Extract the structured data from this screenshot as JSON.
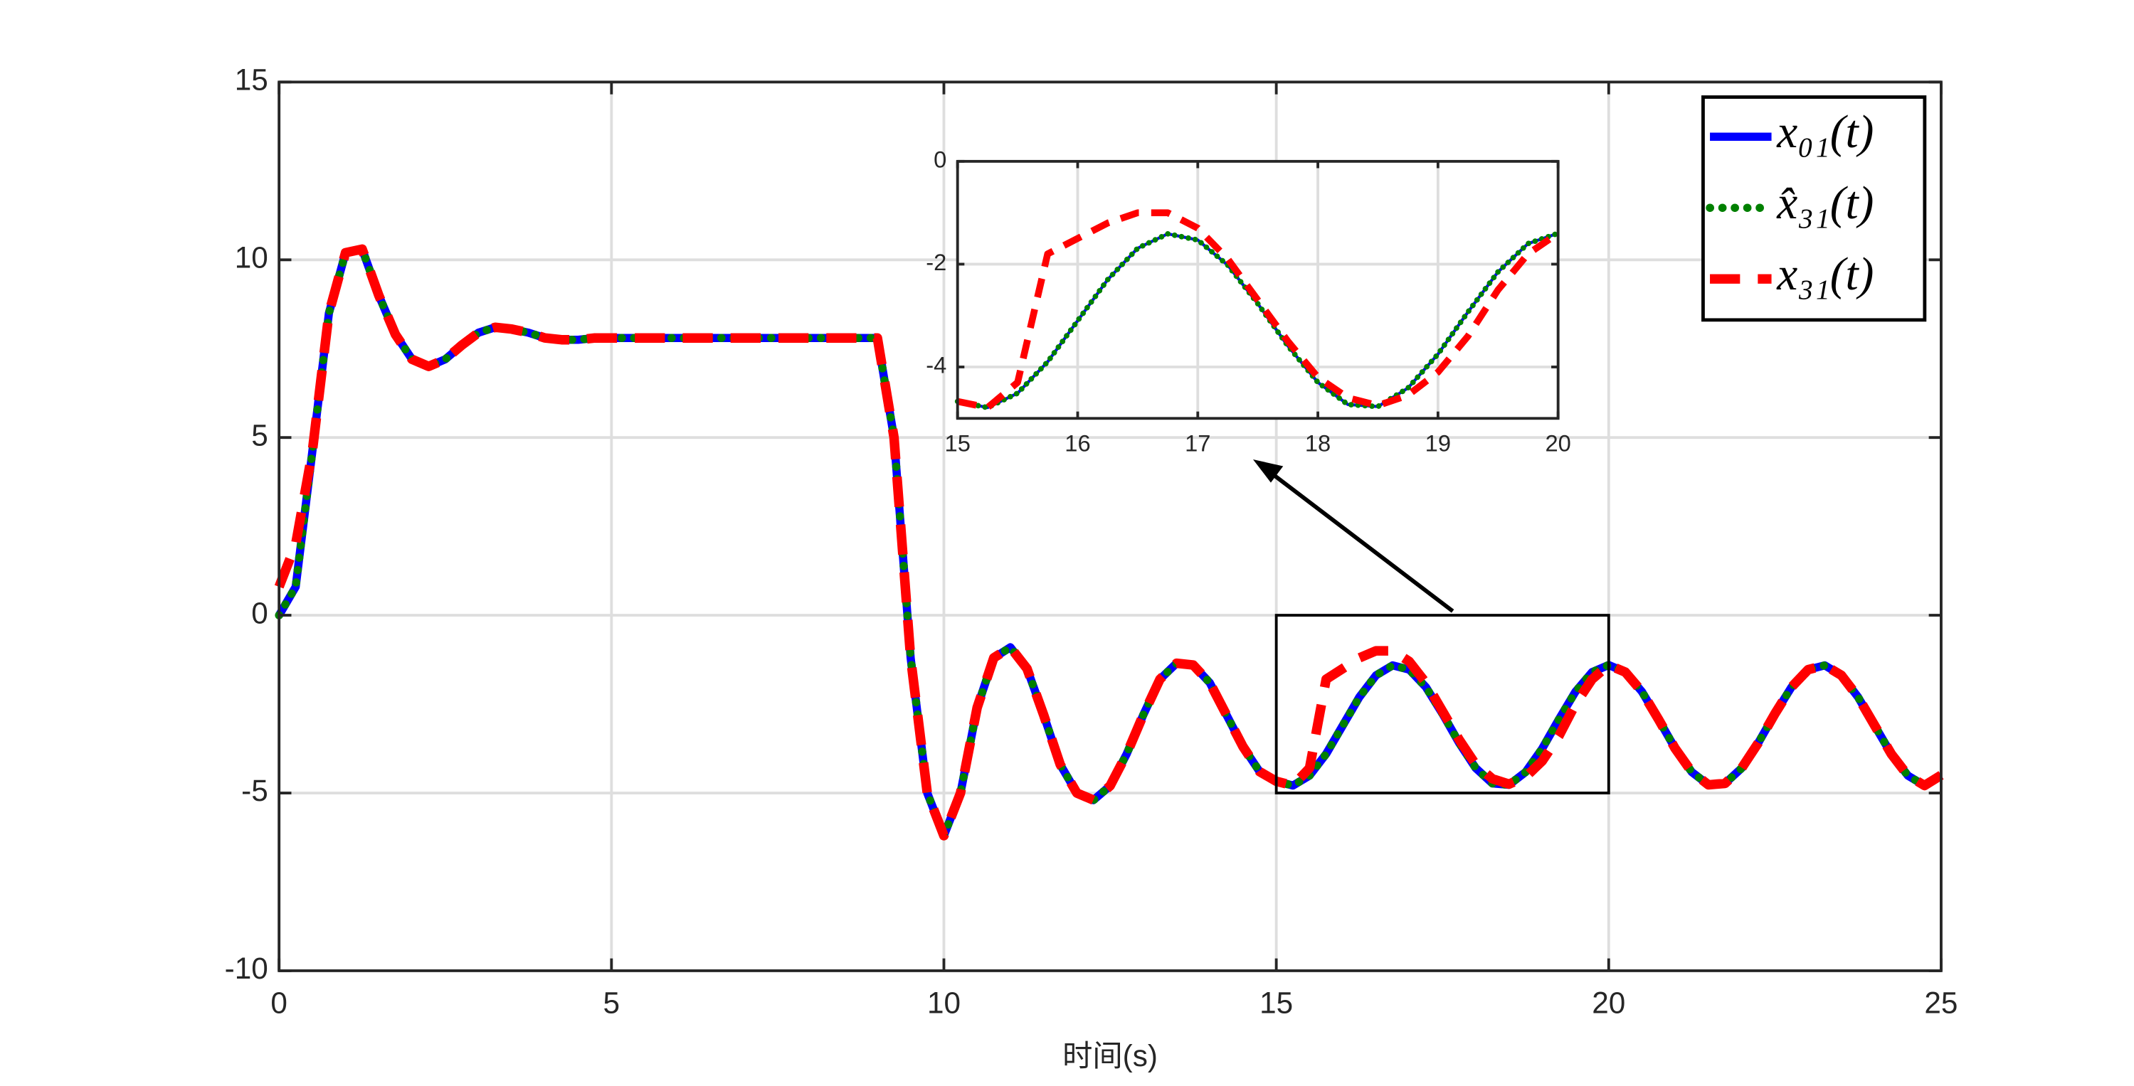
{
  "chart_data": [
    {
      "type": "line",
      "xlabel": "时间(s)",
      "x": [
        0,
        0.25,
        0.5,
        0.75,
        1,
        1.25,
        1.5,
        1.75,
        2,
        2.25,
        2.5,
        2.75,
        3,
        3.25,
        3.5,
        3.75,
        4,
        4.25,
        4.5,
        4.75,
        5,
        5.25,
        5.5,
        5.75,
        6,
        6.25,
        6.5,
        6.75,
        7,
        7.25,
        7.5,
        7.75,
        8,
        8.25,
        8.5,
        8.75,
        9,
        9.25,
        9.5,
        9.75,
        10,
        10.25,
        10.5,
        10.75,
        11,
        11.25,
        11.5,
        11.75,
        12,
        12.25,
        12.5,
        12.75,
        13,
        13.25,
        13.5,
        13.75,
        14,
        14.25,
        14.5,
        14.75,
        15,
        15.25,
        15.5,
        15.75,
        16,
        16.25,
        16.5,
        16.75,
        17,
        17.25,
        17.5,
        17.75,
        18,
        18.25,
        18.5,
        18.75,
        19,
        19.25,
        19.5,
        19.75,
        20,
        20.25,
        20.5,
        20.75,
        21,
        21.25,
        21.5,
        21.75,
        22,
        22.25,
        22.5,
        22.75,
        23,
        23.25,
        23.5,
        23.75,
        24,
        24.25,
        24.5,
        24.75,
        25
      ],
      "series": [
        {
          "name": "x₀₁(t)",
          "color": "#0000ff",
          "linestyle": "-",
          "values": [
            0,
            0.8,
            4.6,
            8.5,
            10.2,
            10.3,
            9.0,
            7.9,
            7.2,
            7.0,
            7.2,
            7.6,
            7.95,
            8.1,
            8.05,
            7.95,
            7.8,
            7.75,
            7.75,
            7.8,
            7.8,
            7.8,
            7.8,
            7.8,
            7.8,
            7.8,
            7.8,
            7.8,
            7.8,
            7.8,
            7.8,
            7.8,
            7.8,
            7.8,
            7.8,
            7.8,
            7.8,
            5.0,
            -1.2,
            -5.0,
            -6.2,
            -5.0,
            -2.6,
            -1.2,
            -0.9,
            -1.5,
            -2.8,
            -4.2,
            -5.0,
            -5.2,
            -4.8,
            -3.9,
            -2.8,
            -1.8,
            -1.35,
            -1.4,
            -1.9,
            -2.8,
            -3.7,
            -4.4,
            -4.67,
            -4.79,
            -4.51,
            -3.9,
            -3.1,
            -2.3,
            -1.69,
            -1.41,
            -1.53,
            -2.02,
            -2.77,
            -3.59,
            -4.3,
            -4.73,
            -4.77,
            -4.41,
            -3.75,
            -2.93,
            -2.15,
            -1.6,
            -1.4,
            -1.6,
            -2.15,
            -2.93,
            -3.75,
            -4.41,
            -4.77,
            -4.73,
            -4.3,
            -3.59,
            -2.77,
            -2.02,
            -1.53,
            -1.41,
            -1.69,
            -2.3,
            -3.1,
            -3.9,
            -4.51,
            -4.79,
            -4.5
          ]
        },
        {
          "name": "x̂₃₁(t)",
          "color": "#008000",
          "linestyle": ":",
          "values": [
            0,
            0.8,
            4.6,
            8.5,
            10.2,
            10.3,
            9.0,
            7.9,
            7.2,
            7.0,
            7.2,
            7.6,
            7.95,
            8.1,
            8.05,
            7.95,
            7.8,
            7.75,
            7.75,
            7.8,
            7.8,
            7.8,
            7.8,
            7.8,
            7.8,
            7.8,
            7.8,
            7.8,
            7.8,
            7.8,
            7.8,
            7.8,
            7.8,
            7.8,
            7.8,
            7.8,
            7.8,
            5.0,
            -1.2,
            -5.0,
            -6.2,
            -5.0,
            -2.6,
            -1.2,
            -0.9,
            -1.5,
            -2.8,
            -4.2,
            -5.0,
            -5.2,
            -4.8,
            -3.9,
            -2.8,
            -1.8,
            -1.35,
            -1.4,
            -1.9,
            -2.8,
            -3.7,
            -4.4,
            -4.67,
            -4.79,
            -4.51,
            -3.9,
            -3.1,
            -2.3,
            -1.69,
            -1.41,
            -1.53,
            -2.02,
            -2.77,
            -3.59,
            -4.3,
            -4.73,
            -4.77,
            -4.41,
            -3.75,
            -2.93,
            -2.15,
            -1.6,
            -1.4,
            -1.6,
            -2.15,
            -2.93,
            -3.75,
            -4.41,
            -4.77,
            -4.73,
            -4.3,
            -3.59,
            -2.77,
            -2.02,
            -1.53,
            -1.41,
            -1.69,
            -2.3,
            -3.1,
            -3.9,
            -4.51,
            -4.79,
            -4.5
          ]
        },
        {
          "name": "x₃₁(t)",
          "color": "#ff0000",
          "linestyle": "--",
          "values": [
            0.8,
            2.0,
            4.6,
            8.5,
            10.2,
            10.3,
            9.0,
            7.9,
            7.2,
            7.0,
            7.2,
            7.6,
            7.95,
            8.1,
            8.05,
            7.95,
            7.8,
            7.75,
            7.75,
            7.8,
            7.8,
            7.8,
            7.8,
            7.8,
            7.8,
            7.8,
            7.8,
            7.8,
            7.8,
            7.8,
            7.8,
            7.8,
            7.8,
            7.8,
            7.8,
            7.8,
            7.8,
            5.0,
            -1.2,
            -5.0,
            -6.2,
            -5.0,
            -2.6,
            -1.2,
            -0.9,
            -1.5,
            -2.8,
            -4.2,
            -5.0,
            -5.2,
            -4.8,
            -3.9,
            -2.8,
            -1.8,
            -1.35,
            -1.4,
            -1.9,
            -2.8,
            -3.7,
            -4.4,
            -4.67,
            -4.79,
            -4.3,
            -1.8,
            -1.5,
            -1.2,
            -1.0,
            -1.0,
            -1.3,
            -1.9,
            -2.7,
            -3.5,
            -4.2,
            -4.6,
            -4.75,
            -4.55,
            -4.1,
            -3.4,
            -2.5,
            -1.8,
            -1.4,
            -1.6,
            -2.15,
            -2.93,
            -3.75,
            -4.41,
            -4.77,
            -4.73,
            -4.3,
            -3.59,
            -2.77,
            -2.02,
            -1.53,
            -1.41,
            -1.69,
            -2.3,
            -3.1,
            -3.9,
            -4.51,
            -4.79,
            -4.5
          ]
        }
      ],
      "xlim": [
        0,
        25
      ],
      "ylim": [
        -10,
        15
      ],
      "xticks": [
        0,
        5,
        10,
        15,
        20,
        25
      ],
      "yticks": [
        -10,
        -5,
        0,
        5,
        10,
        15
      ],
      "grid": true,
      "legend": "upper right"
    },
    {
      "type": "line",
      "x": [
        15,
        15.25,
        15.5,
        15.75,
        16,
        16.25,
        16.5,
        16.75,
        17,
        17.25,
        17.5,
        17.75,
        18,
        18.25,
        18.5,
        18.75,
        19,
        19.25,
        19.5,
        19.75,
        20
      ],
      "series": [
        {
          "color": "#0000ff",
          "linestyle": "-",
          "values": [
            -4.67,
            -4.79,
            -4.51,
            -3.9,
            -3.1,
            -2.3,
            -1.69,
            -1.41,
            -1.53,
            -2.02,
            -2.77,
            -3.59,
            -4.3,
            -4.73,
            -4.77,
            -4.41,
            -3.75,
            -2.93,
            -2.15,
            -1.6,
            -1.4
          ]
        },
        {
          "color": "#008000",
          "linestyle": ":",
          "values": [
            -4.67,
            -4.79,
            -4.51,
            -3.9,
            -3.1,
            -2.3,
            -1.69,
            -1.41,
            -1.53,
            -2.02,
            -2.77,
            -3.59,
            -4.3,
            -4.73,
            -4.77,
            -4.41,
            -3.75,
            -2.93,
            -2.15,
            -1.6,
            -1.4
          ]
        },
        {
          "color": "#ff0000",
          "linestyle": "--",
          "values": [
            -4.67,
            -4.79,
            -4.3,
            -1.8,
            -1.5,
            -1.2,
            -1.0,
            -1.0,
            -1.3,
            -1.9,
            -2.7,
            -3.5,
            -4.2,
            -4.6,
            -4.75,
            -4.55,
            -4.1,
            -3.4,
            -2.5,
            -1.8,
            -1.4
          ]
        }
      ],
      "xlim": [
        15,
        20
      ],
      "ylim": [
        -5,
        0
      ],
      "xticks": [
        15,
        16,
        17,
        18,
        19,
        20
      ],
      "yticks": [
        -4,
        -2,
        0
      ],
      "grid": true
    }
  ]
}
